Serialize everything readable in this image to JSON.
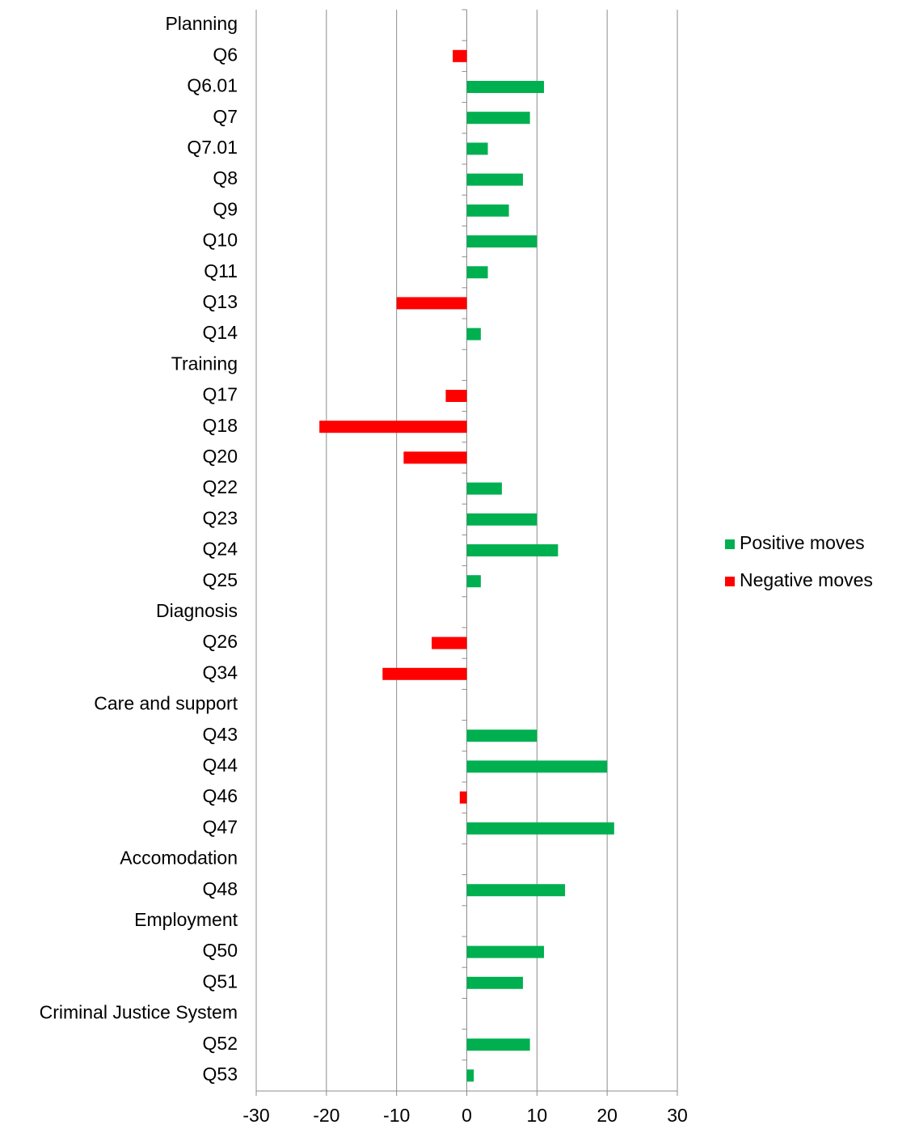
{
  "chart_data": {
    "type": "bar",
    "orientation": "horizontal",
    "categories": [
      "Planning",
      "Q6",
      "Q6.01",
      "Q7",
      "Q7.01",
      "Q8",
      "Q9",
      "Q10",
      "Q11",
      "Q13",
      "Q14",
      "Training",
      "Q17",
      "Q18",
      "Q20",
      "Q22",
      "Q23",
      "Q24",
      "Q25",
      "Diagnosis",
      "Q26",
      "Q34",
      "Care and support",
      "Q43",
      "Q44",
      "Q46",
      "Q47",
      "Accomodation",
      "Q48",
      "Employment",
      "Q50",
      "Q51",
      "Criminal Justice System",
      "Q52",
      "Q53"
    ],
    "series": [
      {
        "name": "Positive moves",
        "color": "#00b050",
        "values": [
          null,
          null,
          11,
          9,
          3,
          8,
          6,
          10,
          3,
          null,
          2,
          null,
          null,
          null,
          null,
          5,
          10,
          13,
          2,
          null,
          null,
          null,
          null,
          10,
          20,
          null,
          21,
          null,
          14,
          null,
          11,
          8,
          null,
          9,
          1
        ]
      },
      {
        "name": "Negative moves",
        "color": "#ff0000",
        "values": [
          null,
          -2,
          null,
          null,
          null,
          null,
          null,
          null,
          null,
          -10,
          null,
          null,
          -3,
          -21,
          -9,
          null,
          null,
          null,
          null,
          null,
          -5,
          -12,
          null,
          null,
          null,
          -1,
          null,
          null,
          null,
          null,
          null,
          null,
          null,
          null,
          null
        ]
      }
    ],
    "xlim": [
      -30,
      30
    ],
    "xticks": [
      -30,
      -20,
      -10,
      0,
      10,
      20,
      30
    ],
    "grid": true,
    "legend": "right"
  }
}
